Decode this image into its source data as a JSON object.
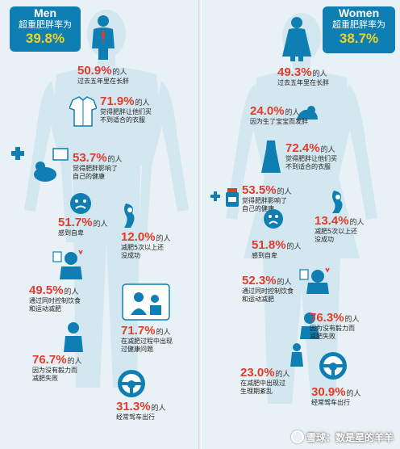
{
  "colors": {
    "accent": "#0f7fb3",
    "value": "#e23b2b",
    "highlight": "#f5d21a",
    "silhouette": "#d3e7f0"
  },
  "men": {
    "title_en": "Men",
    "title_cn": "超重肥胖率为",
    "rate": "39.8%",
    "unit": "的人",
    "stats": [
      {
        "value": "50.9%",
        "desc": [
          "过去五年里在长胖"
        ]
      },
      {
        "value": "71.9%",
        "desc": [
          "觉得肥胖让他们买",
          "不到适合的衣服"
        ]
      },
      {
        "value": "53.7%",
        "desc": [
          "觉得肥胖影响了",
          "自己的健康"
        ]
      },
      {
        "value": "51.7%",
        "desc": [
          "感到自卑"
        ]
      },
      {
        "value": "12.0%",
        "desc": [
          "减肥5次以上还",
          "没成功"
        ]
      },
      {
        "value": "49.5%",
        "desc": [
          "通过同时控制饮食",
          "和运动减肥"
        ]
      },
      {
        "value": "71.7%",
        "desc": [
          "在减肥过程中出现",
          "过健康问题"
        ]
      },
      {
        "value": "76.7%",
        "desc": [
          "因为没有毅力而",
          "减肥失败"
        ]
      },
      {
        "value": "31.3%",
        "desc": [
          "经常驾车出行"
        ]
      }
    ]
  },
  "women": {
    "title_en": "Women",
    "title_cn": "超重肥胖率为",
    "rate": "38.7%",
    "unit": "的人",
    "stats": [
      {
        "value": "49.3%",
        "desc": [
          "过去五年里在长胖"
        ]
      },
      {
        "value": "24.0%",
        "desc": [
          "因为生了宝宝而发胖"
        ]
      },
      {
        "value": "72.4%",
        "desc": [
          "觉得肥胖让他们买",
          "不到适合的衣服"
        ]
      },
      {
        "value": "53.5%",
        "desc": [
          "觉得肥胖影响了",
          "自己的健康"
        ]
      },
      {
        "value": "13.4%",
        "desc": [
          "减肥5次以上还",
          "没成功"
        ]
      },
      {
        "value": "51.8%",
        "desc": [
          "感到自卑"
        ]
      },
      {
        "value": "52.3%",
        "desc": [
          "通过同时控制饮食",
          "和运动减肥"
        ]
      },
      {
        "value": "76.3%",
        "desc": [
          "因为没有毅力而",
          "减肥失败"
        ]
      },
      {
        "value": "23.0%",
        "desc": [
          "在减肥中出现过",
          "生理期紊乱"
        ]
      },
      {
        "value": "30.9%",
        "desc": [
          "经常驾车出行"
        ]
      }
    ]
  },
  "watermark": {
    "text": "雪球：数是星的羊羊"
  },
  "icons": [
    "man-figure-icon",
    "woman-figure-icon",
    "shirt-icon",
    "baby-icon",
    "dress-icon",
    "medical-cross-icon",
    "medicine-bottle-icon",
    "sad-face-icon",
    "dizzy-person-icon",
    "scale-icon",
    "doctor-icon",
    "tired-person-icon",
    "steering-wheel-icon"
  ]
}
